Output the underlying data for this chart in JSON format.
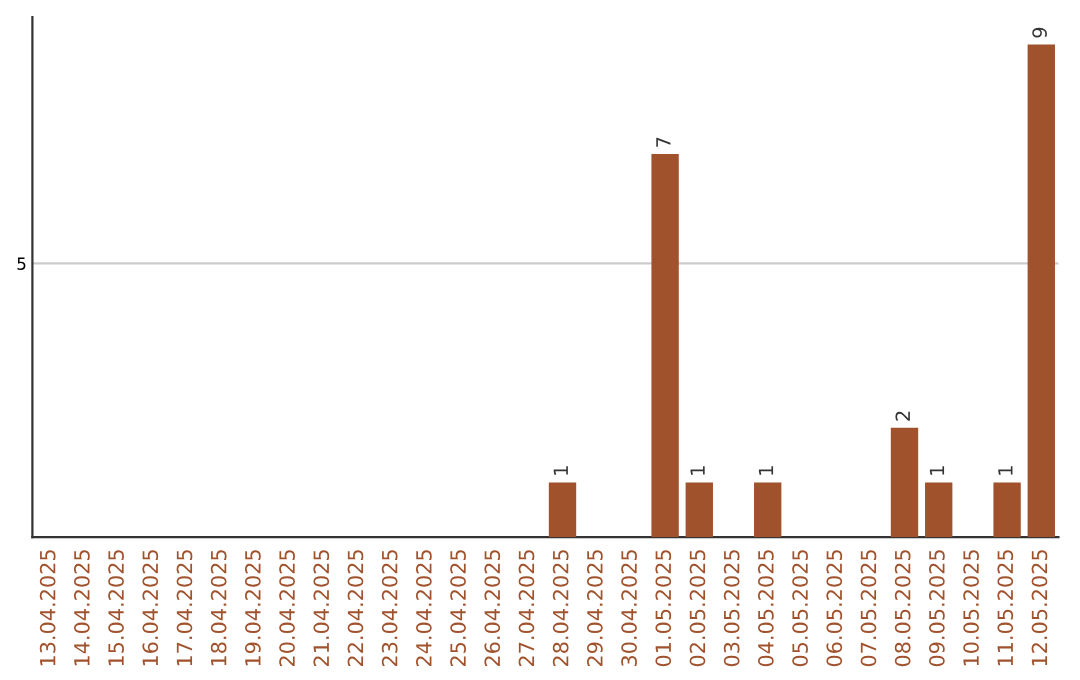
{
  "chart_data": {
    "type": "bar",
    "categories": [
      "13.04.2025",
      "14.04.2025",
      "15.04.2025",
      "16.04.2025",
      "17.04.2025",
      "18.04.2025",
      "19.04.2025",
      "20.04.2025",
      "21.04.2025",
      "22.04.2025",
      "23.04.2025",
      "24.04.2025",
      "25.04.2025",
      "26.04.2025",
      "27.04.2025",
      "28.04.2025",
      "29.04.2025",
      "30.04.2025",
      "01.05.2025",
      "02.05.2025",
      "03.05.2025",
      "04.05.2025",
      "05.05.2025",
      "06.05.2025",
      "07.05.2025",
      "08.05.2025",
      "09.05.2025",
      "10.05.2025",
      "11.05.2025",
      "12.05.2025"
    ],
    "values": [
      null,
      null,
      null,
      null,
      null,
      null,
      null,
      null,
      null,
      null,
      null,
      null,
      null,
      null,
      null,
      1,
      null,
      null,
      7,
      1,
      null,
      1,
      null,
      null,
      null,
      2,
      1,
      null,
      1,
      9
    ],
    "data_labels": true,
    "color": "#a0522d",
    "ylim": [
      0,
      9.5
    ],
    "yticks": [
      5
    ],
    "grid": "y"
  }
}
